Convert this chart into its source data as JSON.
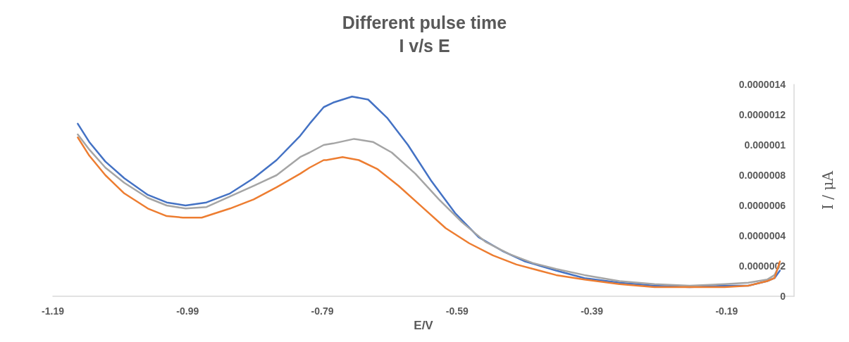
{
  "chart_data": {
    "type": "line",
    "title": "Different pulse time",
    "subtitle": "I v/s E",
    "xlabel": "E/V",
    "ylabel": "I / μA",
    "xlim": [
      -1.19,
      -0.09
    ],
    "xticks": [
      -1.19,
      -0.99,
      -0.79,
      -0.59,
      -0.39,
      -0.19
    ],
    "ylim": [
      0,
      1.4e-06
    ],
    "yticks": [
      0,
      {
        "value": 2e-07,
        "label": "0.0000002"
      },
      {
        "value": 4e-07,
        "label": "0.0000004"
      },
      {
        "value": 6e-07,
        "label": "0.0000006"
      },
      {
        "value": 8e-07,
        "label": "0.0000008"
      },
      {
        "value": 1e-06,
        "label": "0.000001"
      },
      {
        "value": 1.2e-06,
        "label": "0.0000012"
      },
      {
        "value": 1.4e-06,
        "label": "0.0000014"
      }
    ],
    "marker": "none",
    "line_style": "solid",
    "series": [
      {
        "color": "#4472c4",
        "x": [
          -1.153,
          -1.136,
          -1.112,
          -1.084,
          -1.049,
          -1.021,
          -0.993,
          -0.962,
          -0.927,
          -0.892,
          -0.858,
          -0.823,
          -0.809,
          -0.788,
          -0.774,
          -0.746,
          -0.722,
          -0.694,
          -0.663,
          -0.628,
          -0.593,
          -0.558,
          -0.523,
          -0.489,
          -0.443,
          -0.401,
          -0.349,
          -0.297,
          -0.245,
          -0.193,
          -0.158,
          -0.13,
          -0.119,
          -0.111
        ],
        "values": [
          1.14e-06,
          1.02e-06,
          8.9e-07,
          7.8e-07,
          6.7e-07,
          6.2e-07,
          6e-07,
          6.2e-07,
          6.8e-07,
          7.8e-07,
          9e-07,
          1.06e-06,
          1.14e-06,
          1.25e-06,
          1.28e-06,
          1.32e-06,
          1.3e-06,
          1.18e-06,
          1e-06,
          7.6e-07,
          5.5e-07,
          3.9e-07,
          3e-07,
          2.3e-07,
          1.7e-07,
          1.2e-07,
          9e-08,
          7e-08,
          6e-08,
          7e-08,
          7e-08,
          1e-07,
          1.2e-07,
          1.7e-07
        ]
      },
      {
        "color": "#a5a5a5",
        "x": [
          -1.153,
          -1.136,
          -1.112,
          -1.084,
          -1.049,
          -1.021,
          -0.993,
          -0.962,
          -0.927,
          -0.892,
          -0.858,
          -0.823,
          -0.809,
          -0.788,
          -0.774,
          -0.743,
          -0.715,
          -0.687,
          -0.652,
          -0.617,
          -0.583,
          -0.548,
          -0.513,
          -0.478,
          -0.443,
          -0.401,
          -0.349,
          -0.297,
          -0.245,
          -0.193,
          -0.158,
          -0.13,
          -0.119,
          -0.111
        ],
        "values": [
          1.07e-06,
          9.7e-07,
          8.5e-07,
          7.5e-07,
          6.5e-07,
          6e-07,
          5.8e-07,
          5.9e-07,
          6.6e-07,
          7.3e-07,
          8e-07,
          9.2e-07,
          9.5e-07,
          1e-06,
          1.01e-06,
          1.04e-06,
          1.02e-06,
          9.5e-07,
          8.1e-07,
          6.4e-07,
          4.9e-07,
          3.6e-07,
          2.8e-07,
          2.2e-07,
          1.8e-07,
          1.4e-07,
          1e-07,
          8e-08,
          7e-08,
          8e-08,
          9e-08,
          1.1e-07,
          1.4e-07,
          2.1e-07
        ]
      },
      {
        "color": "#ed7d31",
        "x": [
          -1.153,
          -1.136,
          -1.112,
          -1.084,
          -1.049,
          -1.021,
          -0.997,
          -0.969,
          -0.927,
          -0.892,
          -0.858,
          -0.823,
          -0.809,
          -0.788,
          -0.784,
          -0.76,
          -0.736,
          -0.708,
          -0.677,
          -0.642,
          -0.607,
          -0.572,
          -0.537,
          -0.502,
          -0.443,
          -0.401,
          -0.349,
          -0.297,
          -0.245,
          -0.193,
          -0.158,
          -0.13,
          -0.119,
          -0.111
        ],
        "values": [
          1.05e-06,
          9.3e-07,
          8e-07,
          6.8e-07,
          5.8e-07,
          5.3e-07,
          5.2e-07,
          5.2e-07,
          5.8e-07,
          6.4e-07,
          7.2e-07,
          8.1e-07,
          8.5e-07,
          9e-07,
          9e-07,
          9.2e-07,
          9e-07,
          8.4e-07,
          7.3e-07,
          5.9e-07,
          4.5e-07,
          3.5e-07,
          2.7e-07,
          2.1e-07,
          1.4e-07,
          1.1e-07,
          8e-08,
          6e-08,
          6e-08,
          6e-08,
          7e-08,
          1e-07,
          1.2e-07,
          2.3e-07
        ]
      }
    ]
  }
}
